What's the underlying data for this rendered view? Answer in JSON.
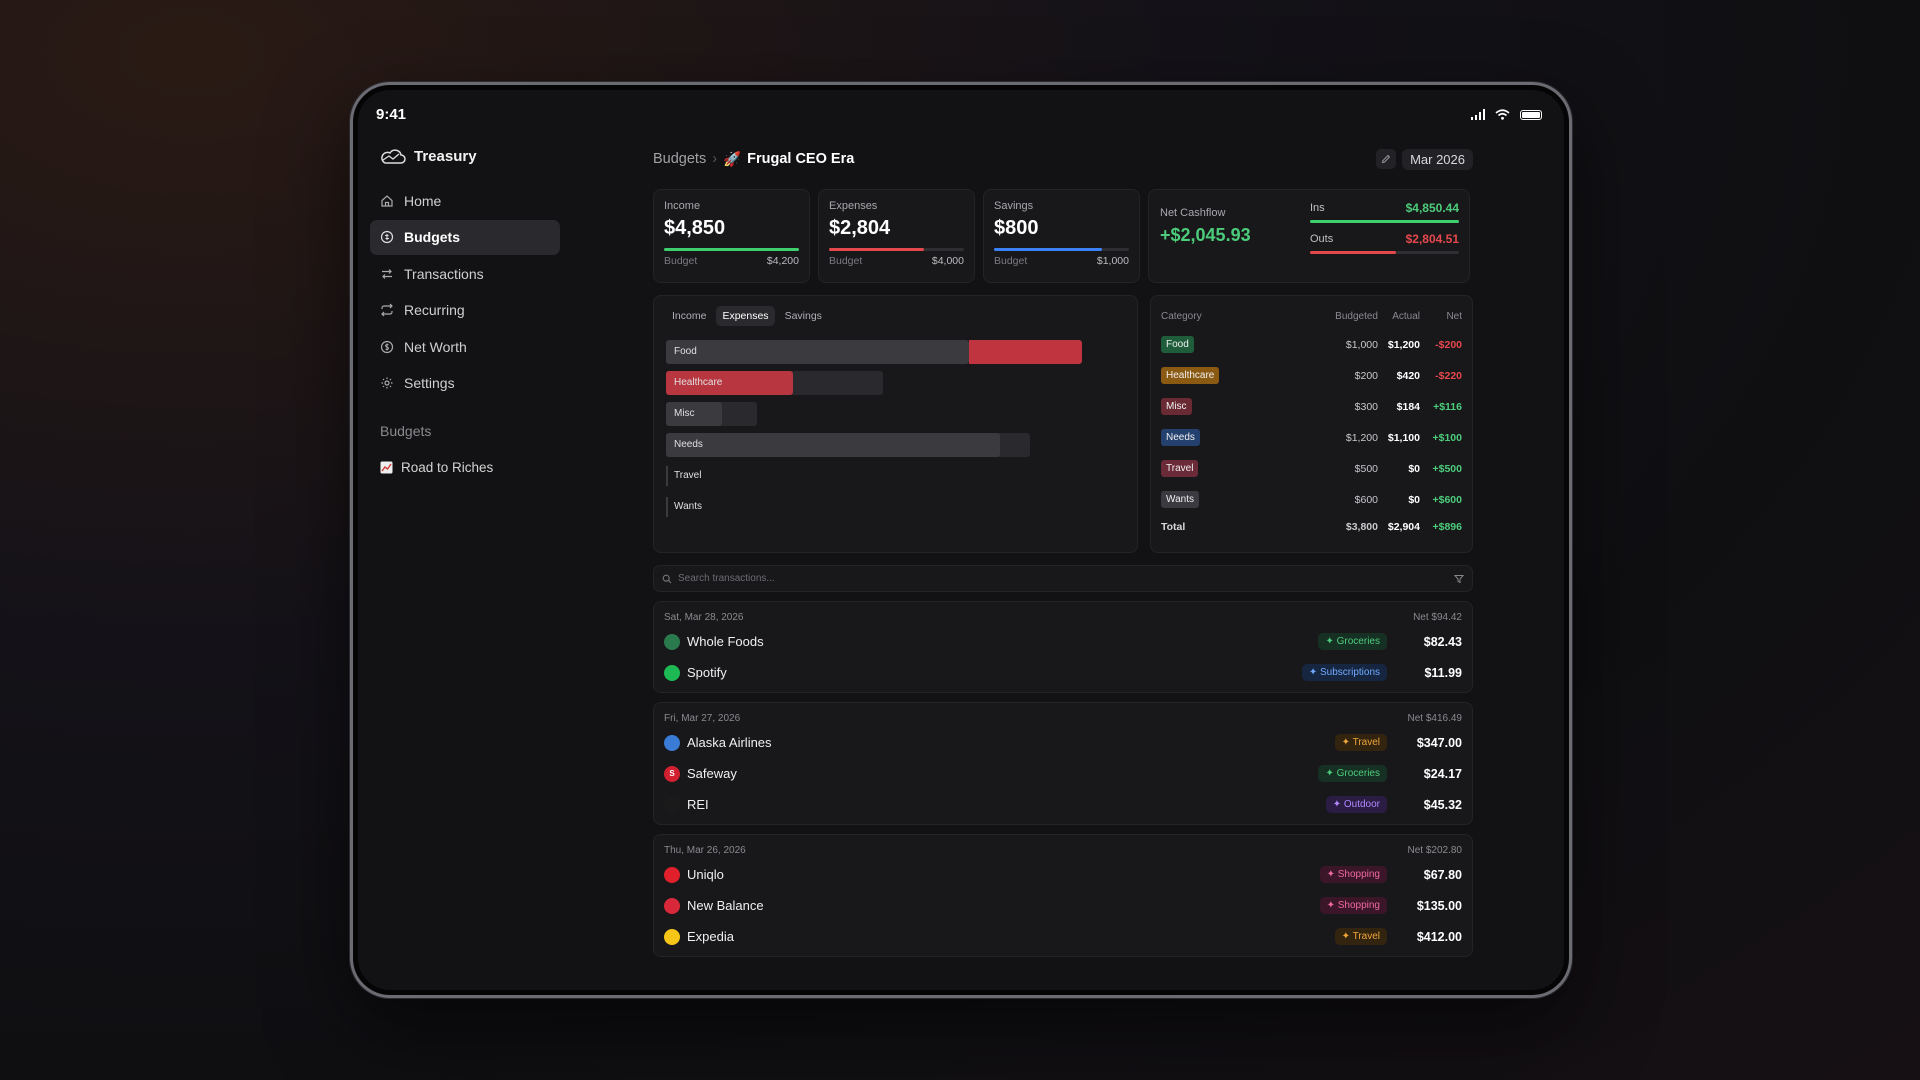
{
  "status_bar": {
    "time": "9:41"
  },
  "sidebar": {
    "brand": "Treasury",
    "nav": [
      {
        "label": "Home",
        "icon": "home-icon"
      },
      {
        "label": "Budgets",
        "icon": "budget-icon",
        "active": true
      },
      {
        "label": "Transactions",
        "icon": "transactions-icon"
      },
      {
        "label": "Recurring",
        "icon": "recurring-icon"
      },
      {
        "label": "Net Worth",
        "icon": "net-worth-icon"
      },
      {
        "label": "Settings",
        "icon": "settings-icon"
      }
    ],
    "section_title": "Budgets",
    "budget_link": "Road to Riches"
  },
  "header": {
    "crumb_root": "Budgets",
    "crumb_sep": "›",
    "title_emoji": "🚀",
    "title": "Frugal CEO Era",
    "month": "Mar 2026"
  },
  "cards": {
    "income": {
      "label": "Income",
      "value": "$4,850",
      "foot_label": "Budget",
      "foot_value": "$4,200",
      "progress": 1.0,
      "color": "#3ecf6e"
    },
    "expenses": {
      "label": "Expenses",
      "value": "$2,804",
      "foot_label": "Budget",
      "foot_value": "$4,000",
      "progress": 0.7,
      "color": "#e5484d"
    },
    "savings": {
      "label": "Savings",
      "value": "$800",
      "foot_label": "Budget",
      "foot_value": "$1,000",
      "progress": 0.8,
      "color": "#3b82f6"
    },
    "cashflow": {
      "label": "Net Cashflow",
      "value": "+$2,045.93",
      "ins_label": "Ins",
      "ins_value": "$4,850.44",
      "ins_progress": 1.0,
      "outs_label": "Outs",
      "outs_value": "$2,804.51",
      "outs_progress": 0.58
    }
  },
  "chart_tabs": [
    "Income",
    "Expenses",
    "Savings"
  ],
  "chart_active_tab": "Expenses",
  "chart_data": {
    "type": "bar",
    "categories": [
      "Food",
      "Healthcare",
      "Misc",
      "Needs",
      "Travel",
      "Wants"
    ],
    "budgeted": [
      1000,
      200,
      300,
      1200,
      500,
      600
    ],
    "actual": [
      1200,
      420,
      184,
      1100,
      0,
      0
    ],
    "colors": {
      "track": "#2a2a2e",
      "fill": "#3a3a3f",
      "over": "#c0343f",
      "over_full": "#b83640"
    }
  },
  "category_table": {
    "headers": {
      "category": "Category",
      "budgeted": "Budgeted",
      "actual": "Actual",
      "net": "Net"
    },
    "rows": [
      {
        "category": "Food",
        "color": "#1f5c3a",
        "budgeted": "$1,000",
        "actual": "$1,200",
        "net": "-$200",
        "positive": false
      },
      {
        "category": "Healthcare",
        "color": "#8a5a12",
        "budgeted": "$200",
        "actual": "$420",
        "net": "-$220",
        "positive": false
      },
      {
        "category": "Misc",
        "color": "#6a2a34",
        "budgeted": "$300",
        "actual": "$184",
        "net": "+$116",
        "positive": true
      },
      {
        "category": "Needs",
        "color": "#24406e",
        "budgeted": "$1,200",
        "actual": "$1,100",
        "net": "+$100",
        "positive": true
      },
      {
        "category": "Travel",
        "color": "#6a2a38",
        "budgeted": "$500",
        "actual": "$0",
        "net": "+$500",
        "positive": true
      },
      {
        "category": "Wants",
        "color": "#3a3a40",
        "budgeted": "$600",
        "actual": "$0",
        "net": "+$600",
        "positive": true
      }
    ],
    "total": {
      "label": "Total",
      "budgeted": "$3,800",
      "actual": "$2,904",
      "net": "+$896"
    }
  },
  "search": {
    "placeholder": "Search transactions..."
  },
  "groups": [
    {
      "date": "Sat, Mar 28, 2026",
      "net": "Net $94.42",
      "items": [
        {
          "name": "Whole Foods",
          "tag": "✦ Groceries",
          "tag_color": "#4ccc7a",
          "tag_bg": "#173024",
          "amount": "$82.43",
          "icon_color": "#2a7a4e",
          "icon_text": ""
        },
        {
          "name": "Spotify",
          "tag": "✦ Subscriptions",
          "tag_color": "#6ea8ff",
          "tag_bg": "#172640",
          "amount": "$11.99",
          "icon_color": "#1db954",
          "icon_text": ""
        }
      ]
    },
    {
      "date": "Fri, Mar 27, 2026",
      "net": "Net $416.49",
      "items": [
        {
          "name": "Alaska Airlines",
          "tag": "✦ Travel",
          "tag_color": "#f0a63a",
          "tag_bg": "#33240f",
          "amount": "$347.00",
          "icon_color": "#3a7bd5",
          "icon_text": ""
        },
        {
          "name": "Safeway",
          "tag": "✦ Groceries",
          "tag_color": "#4ccc7a",
          "tag_bg": "#173024",
          "amount": "$24.17",
          "icon_color": "#d22030",
          "icon_text": "S"
        },
        {
          "name": "REI",
          "tag": "✦ Outdoor",
          "tag_color": "#b388ff",
          "tag_bg": "#2a1c42",
          "amount": "$45.32",
          "icon_color": "#1a1a1a",
          "icon_text": ""
        }
      ]
    },
    {
      "date": "Thu, Mar 26, 2026",
      "net": "Net $202.80",
      "items": [
        {
          "name": "Uniqlo",
          "tag": "✦ Shopping",
          "tag_color": "#f06aa0",
          "tag_bg": "#3a1628",
          "amount": "$67.80",
          "icon_color": "#e0202a",
          "icon_text": ""
        },
        {
          "name": "New Balance",
          "tag": "✦ Shopping",
          "tag_color": "#f06aa0",
          "tag_bg": "#3a1628",
          "amount": "$135.00",
          "icon_color": "#d8283a",
          "icon_text": ""
        },
        {
          "name": "Expedia",
          "tag": "✦ Travel",
          "tag_color": "#f0a63a",
          "tag_bg": "#33240f",
          "amount": "$412.00",
          "icon_color": "#f5c518",
          "icon_text": ""
        }
      ]
    }
  ]
}
